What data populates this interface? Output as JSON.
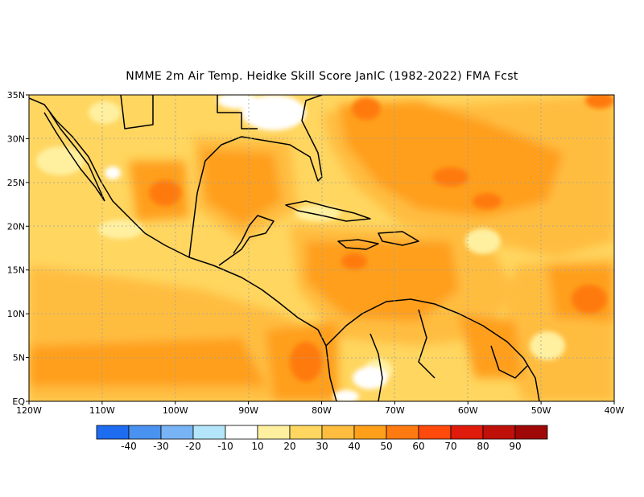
{
  "title": "NMME  2m Air Temp. Heidke Skill Score JanIC (1982-2022) FMA Fcst",
  "map": {
    "lat_labels": [
      "35N",
      "30N",
      "25N",
      "20N",
      "15N",
      "10N",
      "5N",
      "EQ"
    ],
    "lon_labels": [
      "120W",
      "110W",
      "100W",
      "90W",
      "80W",
      "70W",
      "60W",
      "50W",
      "40W"
    ],
    "lon_range": [
      -120,
      -40
    ],
    "lat_range": [
      0,
      35
    ],
    "grid": "dotted",
    "background_class": "20-30",
    "regions": [
      {
        "name": "north-atlantic-high",
        "lon": -58,
        "lat": 28,
        "level": "40-50"
      },
      {
        "name": "gulf-of-mexico",
        "lon": -88,
        "lat": 25,
        "level": "40-50"
      },
      {
        "name": "caribbean-sea",
        "lon": -75,
        "lat": 16,
        "level": "40-50"
      },
      {
        "name": "panama-colombia",
        "lon": -80,
        "lat": 5,
        "level": "50-60"
      },
      {
        "name": "east-tropical-pacific",
        "lon": -110,
        "lat": 5,
        "level": "40-50"
      },
      {
        "name": "mexico-plateau",
        "lon": -101,
        "lat": 25,
        "level": "50-60"
      },
      {
        "name": "atlantic-east-10n",
        "lon": -44,
        "lat": 11,
        "level": "50-60"
      }
    ]
  },
  "colorbar": {
    "labels": [
      "-40",
      "-30",
      "-20",
      "-10",
      "10",
      "20",
      "30",
      "40",
      "50",
      "60",
      "70",
      "80",
      "90"
    ],
    "colors": [
      "#1e6cf0",
      "#4a92f0",
      "#78b3f5",
      "#b3e6fa",
      "#ffffff",
      "#fff0a0",
      "#ffd660",
      "#ffbd40",
      "#ff9f1a",
      "#ff7a10",
      "#ff4a0c",
      "#e01b0b",
      "#c0100a",
      "#a00808"
    ]
  }
}
